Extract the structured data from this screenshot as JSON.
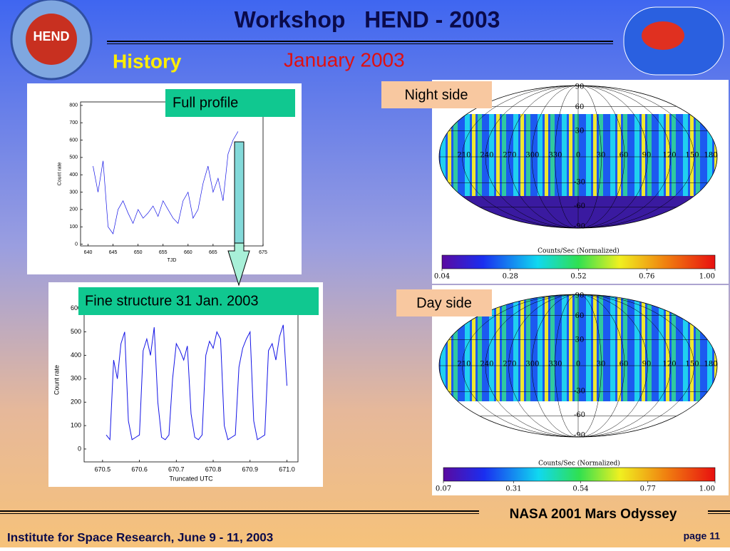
{
  "header": {
    "title": "Workshop   HEND - 2003",
    "section": "History",
    "date": "January 2003",
    "logo_text": "HEND"
  },
  "panels": {
    "full_label": "Full profile",
    "fine_label": "Fine structure 31 Jan. 2003"
  },
  "chart_data": [
    {
      "type": "line",
      "xlabel": "TJD",
      "ylabel": "Count rate",
      "color": "#1414e6",
      "x": [
        641,
        642,
        643,
        644,
        645,
        646,
        647,
        648,
        649,
        650,
        651,
        652,
        653,
        654,
        655,
        656,
        657,
        658,
        659,
        660,
        661,
        662,
        663,
        664,
        665,
        666,
        667,
        668,
        669,
        670
      ],
      "values": [
        450,
        300,
        480,
        100,
        60,
        200,
        250,
        180,
        120,
        200,
        150,
        180,
        220,
        160,
        250,
        200,
        150,
        120,
        250,
        300,
        150,
        200,
        350,
        450,
        300,
        380,
        250,
        520,
        600,
        650
      ],
      "xlim": [
        638.5,
        675
      ],
      "ylim": [
        -10,
        820
      ],
      "xticks": [
        640,
        645,
        650,
        655,
        660,
        665,
        670,
        675
      ],
      "yticks": [
        0,
        100,
        200,
        300,
        400,
        500,
        600,
        700,
        800
      ]
    },
    {
      "type": "line",
      "xlabel": "Truncated UTC",
      "ylabel": "Count rate",
      "color": "#1414e6",
      "x": [
        670.51,
        670.52,
        670.53,
        670.54,
        670.55,
        670.56,
        670.57,
        670.58,
        670.59,
        670.6,
        670.61,
        670.62,
        670.63,
        670.64,
        670.65,
        670.66,
        670.67,
        670.68,
        670.69,
        670.7,
        670.71,
        670.72,
        670.73,
        670.74,
        670.75,
        670.76,
        670.77,
        670.78,
        670.79,
        670.8,
        670.81,
        670.82,
        670.83,
        670.84,
        670.85,
        670.86,
        670.87,
        670.88,
        670.89,
        670.9,
        670.91,
        670.92,
        670.93,
        670.94,
        670.95,
        670.96,
        670.97,
        670.98,
        670.99,
        671
      ],
      "values": [
        60,
        40,
        380,
        300,
        450,
        500,
        120,
        40,
        50,
        60,
        420,
        470,
        400,
        520,
        200,
        50,
        40,
        60,
        300,
        450,
        420,
        380,
        440,
        150,
        50,
        40,
        60,
        400,
        460,
        430,
        500,
        470,
        100,
        40,
        50,
        60,
        350,
        430,
        470,
        500,
        120,
        40,
        50,
        60,
        420,
        450,
        380,
        480,
        530,
        270
      ],
      "xlim": [
        670.45,
        671.03
      ],
      "ylim": [
        -55,
        645
      ],
      "xticks": [
        670.5,
        670.6,
        670.7,
        670.8,
        670.9,
        {
          "value": 671,
          "label": "671.0"
        }
      ],
      "yticks": [
        0,
        100,
        200,
        300,
        400,
        500,
        600
      ]
    }
  ],
  "maps": [
    {
      "label": "Night side",
      "lon_labels": [
        210,
        240,
        270,
        300,
        330,
        0,
        30,
        60,
        90,
        120,
        150,
        180
      ],
      "lat_labels": [
        90,
        60,
        30,
        -30,
        -60,
        -90
      ],
      "colorbar": {
        "title": "Counts/Sec (Normalized)",
        "lim": [
          0.04,
          1
        ],
        "ticks": [
          0.04,
          0.28,
          0.52,
          0.76,
          {
            "value": 1,
            "label": "1.00"
          }
        ]
      }
    },
    {
      "label": "Day side",
      "lon_labels": [
        210,
        240,
        270,
        300,
        330,
        0,
        30,
        60,
        90,
        120,
        150,
        180
      ],
      "lat_labels": [
        90,
        60,
        30,
        -30,
        -60,
        -90
      ],
      "colorbar": {
        "title": "Counts/Sec (Normalized)",
        "lim": [
          0.07,
          1
        ],
        "ticks": [
          0.07,
          0.31,
          0.54,
          0.77,
          {
            "value": 1,
            "label": "1.00"
          }
        ]
      }
    }
  ],
  "footer": {
    "mission": "NASA 2001 Mars Odyssey",
    "institute": "Institute for Space Research, June 9 - 11, 2003",
    "page": "page 11"
  }
}
